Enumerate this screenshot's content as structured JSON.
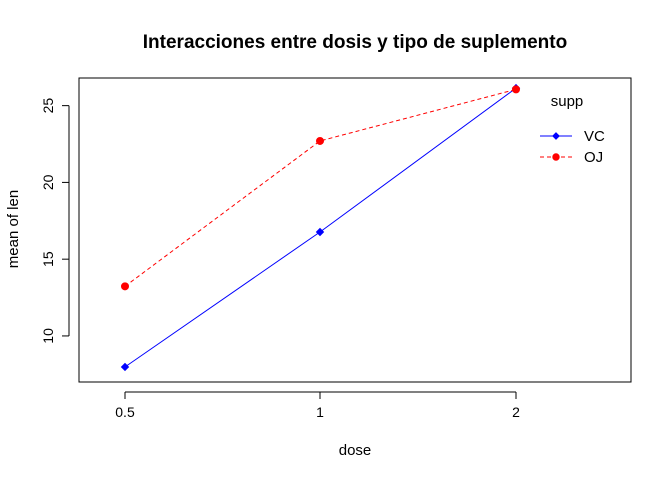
{
  "chart_data": {
    "type": "line",
    "title": "Interacciones entre dosis y tipo de suplemento",
    "xlabel": "dose",
    "ylabel": "mean of len",
    "categories": [
      "0.5",
      "1",
      "2"
    ],
    "ylim": [
      7.0,
      26.8
    ],
    "yticks": [
      "10",
      "15",
      "20",
      "25"
    ],
    "grid": false,
    "legend": {
      "title": "supp",
      "position": "top-right"
    },
    "series": [
      {
        "name": "VC",
        "values": [
          7.98,
          16.77,
          26.14
        ],
        "color": "#0000ff",
        "line_style": "solid",
        "marker": "diamond"
      },
      {
        "name": "OJ",
        "values": [
          13.23,
          22.7,
          26.06
        ],
        "color": "#ff0000",
        "line_style": "dashed",
        "marker": "circle"
      }
    ]
  }
}
